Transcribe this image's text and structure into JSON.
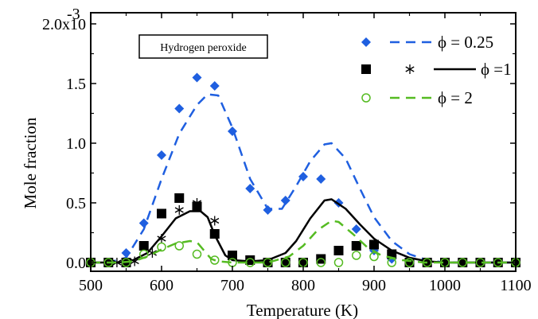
{
  "chart_data": {
    "type": "line",
    "annotation": "Hydrogen peroxide",
    "xlabel": "Temperature (K)",
    "ylabel": "Mole fraction",
    "xlim": [
      500,
      1100
    ],
    "ylim": [
      0,
      0.002
    ],
    "x_ticks": [
      500,
      600,
      700,
      800,
      900,
      1000,
      1100
    ],
    "x_tick_labels": [
      "500",
      "600",
      "700",
      "800",
      "900",
      "1000",
      "1100"
    ],
    "y_ticks": [
      0.0,
      0.0005,
      0.001,
      0.0015,
      0.002
    ],
    "y_tick_labels": [
      "0.0",
      "0.5",
      "1.0",
      "1.5",
      "2.0x10"
    ],
    "y_tick_exponent": "-3",
    "legend_position": "top-right",
    "legend": [
      {
        "label": "ϕ = 0.25",
        "color": "#1f5fe0",
        "markers": [
          "diamond"
        ],
        "line": "dashed"
      },
      {
        "label": "ϕ =1",
        "color": "#000000",
        "markers": [
          "square",
          "asterisk"
        ],
        "line": "solid"
      },
      {
        "label": "ϕ = 2",
        "color": "#55bb22",
        "markers": [
          "open-circle"
        ],
        "line": "dashed"
      }
    ],
    "series": [
      {
        "name": "ϕ = 0.25",
        "kind": "scatter",
        "marker": "diamond",
        "color": "#1f5fe0",
        "x": [
          500,
          525,
          550,
          575,
          600,
          625,
          650,
          675,
          700,
          725,
          750,
          775,
          800,
          825,
          850,
          875,
          900,
          925,
          950,
          975,
          1000,
          1025,
          1050,
          1075,
          1100
        ],
        "y": [
          0,
          0,
          8e-05,
          0.00033,
          0.0009,
          0.00129,
          0.00155,
          0.00148,
          0.0011,
          0.00062,
          0.00044,
          0.00052,
          0.00072,
          0.0007,
          0.0005,
          0.00028,
          0.0001,
          3e-05,
          0,
          0,
          0,
          0,
          0,
          0,
          0
        ]
      },
      {
        "name": "ϕ = 0.25",
        "kind": "line",
        "dash": true,
        "color": "#1f5fe0",
        "x": [
          500,
          525,
          550,
          575,
          600,
          625,
          650,
          665,
          680,
          700,
          725,
          750,
          770,
          790,
          810,
          830,
          840,
          860,
          880,
          900,
          925,
          950,
          975,
          1000,
          1025,
          1050,
          1100
        ],
        "y": [
          0,
          0,
          4e-05,
          0.00028,
          0.0007,
          0.00108,
          0.00132,
          0.00141,
          0.0014,
          0.00113,
          0.0007,
          0.00045,
          0.00045,
          0.00064,
          0.00085,
          0.00099,
          0.001,
          0.00087,
          0.00062,
          0.00038,
          0.00018,
          7e-05,
          2e-05,
          0,
          0,
          0,
          0
        ]
      },
      {
        "name": "ϕ =1",
        "kind": "scatter",
        "marker": "square",
        "color": "#000000",
        "x": [
          500,
          525,
          550,
          575,
          600,
          625,
          650,
          675,
          700,
          725,
          750,
          775,
          800,
          825,
          850,
          875,
          900,
          925,
          950,
          975,
          1000,
          1025,
          1050,
          1075,
          1100
        ],
        "y": [
          0,
          0,
          0,
          0.00014,
          0.00041,
          0.00054,
          0.00047,
          0.00024,
          6e-05,
          2e-05,
          0,
          0,
          0,
          3e-05,
          0.0001,
          0.00014,
          0.00015,
          7e-05,
          0,
          0,
          0,
          0,
          0,
          0,
          0
        ]
      },
      {
        "name": "ϕ =1",
        "kind": "scatter",
        "marker": "asterisk",
        "color": "#000000",
        "x": [
          537,
          562,
          587,
          600,
          625,
          650,
          675,
          700,
          725
        ],
        "y": [
          0,
          1e-05,
          8e-05,
          0.0002,
          0.00044,
          0.0005,
          0.00035,
          6e-05,
          2e-05
        ]
      },
      {
        "name": "ϕ =1",
        "kind": "line",
        "dash": false,
        "color": "#000000",
        "x": [
          500,
          540,
          560,
          580,
          600,
          620,
          640,
          655,
          665,
          675,
          690,
          700,
          725,
          750,
          775,
          790,
          810,
          830,
          840,
          860,
          880,
          900,
          925,
          950,
          975,
          1000,
          1025,
          1100
        ],
        "y": [
          0,
          0,
          2e-05,
          8e-05,
          0.00022,
          0.00037,
          0.00043,
          0.00043,
          0.00038,
          0.00023,
          6e-05,
          2e-05,
          1e-05,
          2e-05,
          8e-05,
          0.00018,
          0.00037,
          0.00052,
          0.00053,
          0.00045,
          0.00032,
          0.0002,
          0.0001,
          4e-05,
          1e-05,
          0,
          0,
          0
        ]
      },
      {
        "name": "ϕ = 2",
        "kind": "scatter",
        "marker": "open-circle",
        "color": "#55bb22",
        "x": [
          500,
          525,
          550,
          575,
          600,
          625,
          650,
          675,
          700,
          725,
          750,
          775,
          800,
          825,
          850,
          875,
          900,
          925,
          950,
          975,
          1000,
          1025,
          1050,
          1075,
          1100
        ],
        "y": [
          0,
          0,
          0,
          7e-05,
          0.00013,
          0.00014,
          7e-05,
          2e-05,
          0,
          0,
          0,
          0,
          0,
          0,
          0,
          6e-05,
          5e-05,
          0,
          0,
          0,
          0,
          0,
          0,
          0,
          0
        ]
      },
      {
        "name": "ϕ = 2",
        "kind": "line",
        "dash": true,
        "color": "#55bb22",
        "x": [
          500,
          540,
          560,
          580,
          600,
          620,
          640,
          650,
          660,
          670,
          680,
          700,
          725,
          750,
          780,
          800,
          820,
          840,
          850,
          870,
          890,
          910,
          940,
          970,
          1000,
          1100
        ],
        "y": [
          0,
          0,
          1e-05,
          5e-05,
          0.00011,
          0.00016,
          0.00018,
          0.00017,
          0.0001,
          3e-05,
          1e-05,
          0,
          0,
          0,
          5e-05,
          0.00014,
          0.00027,
          0.00035,
          0.00034,
          0.00024,
          0.00013,
          6e-05,
          2e-05,
          0,
          0,
          0
        ]
      }
    ]
  }
}
